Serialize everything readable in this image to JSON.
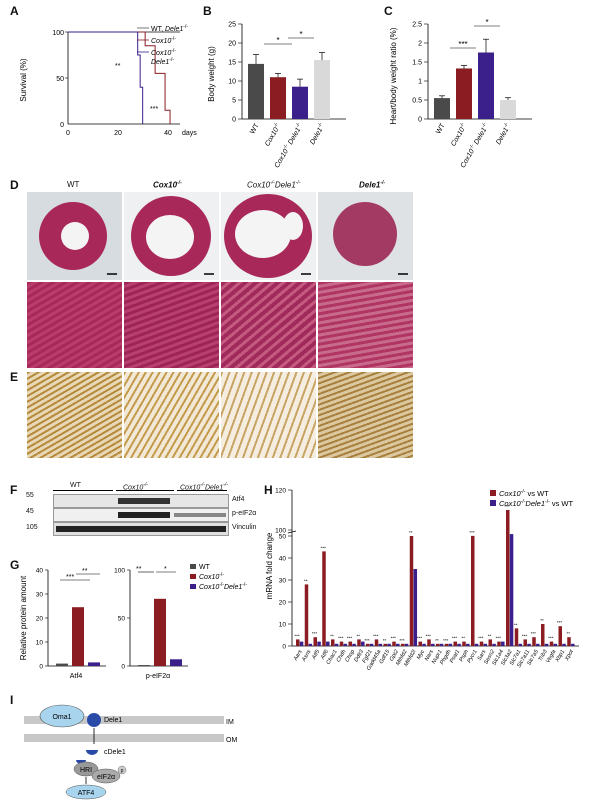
{
  "panels": {
    "A": "A",
    "B": "B",
    "C": "C",
    "D": "D",
    "E": "E",
    "F": "F",
    "G": "G",
    "H": "H",
    "I": "I"
  },
  "colors": {
    "wt": "#4a4a4a",
    "cox10": "#8a1c22",
    "dko": "#3b1f8a",
    "dele1": "#d9d9d9",
    "histo": "#a9285a",
    "dab": "#b58a3a"
  },
  "panelA": {
    "ylabel": "Survival (%)",
    "xunit": "days",
    "yticks": [
      "0",
      "50",
      "100"
    ],
    "xticks": [
      "0",
      "20",
      "40"
    ],
    "legend": [
      {
        "label": "WT, ",
        "label_i": "Dele1",
        "sup": "-/-"
      },
      {
        "label": "",
        "label_i": "Cox10",
        "sup": "-/-"
      },
      {
        "label": "",
        "label_i": "Cox10",
        "sup": "-/-"
      },
      {
        "label": "",
        "label_i": "Dele1",
        "sup": "-/-"
      }
    ],
    "sig1": "**",
    "sig2": "***"
  },
  "chart_data": [
    {
      "type": "line",
      "ylabel": "Survival (%)",
      "xlabel": "days",
      "xlim": [
        0,
        45
      ],
      "ylim": [
        0,
        100
      ],
      "series": [
        {
          "name": "WT, Dele1-/-",
          "x": [
            0,
            45
          ],
          "y": [
            100,
            100
          ]
        },
        {
          "name": "Cox10-/-",
          "x": [
            0,
            31,
            31,
            35,
            35,
            39,
            39,
            41,
            41
          ],
          "y": [
            100,
            100,
            85,
            85,
            55,
            55,
            15,
            15,
            0
          ]
        },
        {
          "name": "Cox10-/-Dele1-/-",
          "x": [
            0,
            28,
            28,
            29,
            29,
            30,
            30
          ],
          "y": [
            100,
            100,
            75,
            75,
            40,
            40,
            0
          ]
        }
      ]
    },
    {
      "type": "bar",
      "ylabel": "Body weight (g)",
      "categories": [
        "WT",
        "Cox10-/-",
        "Cox10-/- Dele1-/-",
        "Dele1-/-"
      ],
      "values": [
        14.5,
        11,
        8.5,
        15.5
      ],
      "errors": [
        2.5,
        1,
        2,
        2
      ],
      "ylim": [
        0,
        25
      ],
      "yticks": [
        0,
        5,
        10,
        15,
        20,
        25
      ],
      "sig": [
        "*",
        "*"
      ]
    },
    {
      "type": "bar",
      "ylabel": "Heart/body weight ratio (%)",
      "categories": [
        "WT",
        "Cox10-/-",
        "Cox10-/- Dele1-/-",
        "Dele1-/-"
      ],
      "values": [
        0.55,
        1.33,
        1.75,
        0.5
      ],
      "errors": [
        0.06,
        0.08,
        0.35,
        0.06
      ],
      "ylim": [
        0,
        2.5
      ],
      "yticks": [
        0,
        0.5,
        1,
        1.5,
        2,
        2.5
      ],
      "sig": [
        "***",
        "*"
      ]
    },
    {
      "type": "bar",
      "ylabel": "Relative protein amount",
      "categories": [
        "Atf4",
        "p-eIF2α"
      ],
      "series": [
        {
          "name": "WT",
          "values": [
            1,
            1
          ]
        },
        {
          "name": "Cox10-/-",
          "values": [
            24.5,
            70
          ]
        },
        {
          "name": "Cox10-/-Dele1-/-",
          "values": [
            1.5,
            7
          ]
        }
      ],
      "yticks_left": [
        0,
        10,
        20,
        30,
        40
      ],
      "yticks_right": [
        0,
        50,
        100
      ]
    },
    {
      "type": "bar",
      "ylabel": "mRNA fold change",
      "yticks": [
        0,
        10,
        20,
        30,
        40,
        50,
        100,
        120
      ],
      "categories": [
        "Aars",
        "Asns",
        "Atf5",
        "Atf6",
        "Chac1",
        "Chdh",
        "Chop",
        "Ddit3",
        "Fgf21",
        "Gadd45a",
        "Gdf15",
        "Gpt2",
        "Mthfd2",
        "Mthfd2l",
        "Myc",
        "Nars",
        "Nupr1",
        "Phgdh",
        "Psat1",
        "Psph",
        "Pycr1",
        "Sars",
        "Sesn2",
        "Slc1a4",
        "Slc3a2",
        "Slc7a1",
        "Slc7a11",
        "Slc7a5",
        "Trib3",
        "Vegfa",
        "Xbp1",
        "Xpot"
      ],
      "series": [
        {
          "name": "Cox10-/- vs WT",
          "values": [
            3,
            28,
            4,
            43,
            3,
            2,
            2,
            3,
            1,
            3,
            1,
            2,
            1,
            50,
            2,
            3,
            1,
            1,
            2,
            2,
            51,
            2,
            3,
            2,
            110,
            8,
            3,
            4,
            10,
            2,
            9,
            4
          ]
        },
        {
          "name": "Cox10-/-Dele1-/- vs WT",
          "values": [
            2,
            1,
            2,
            2,
            1,
            1,
            1,
            2,
            1,
            1,
            1,
            1,
            1,
            35,
            1,
            1,
            1,
            1,
            1,
            1,
            1,
            1,
            1,
            2,
            66,
            1,
            1,
            1,
            1,
            1,
            1,
            1
          ]
        }
      ]
    }
  ],
  "panelB": {
    "ylabel": "Body weight (g)",
    "yticks": [
      "0",
      "5",
      "10",
      "15",
      "20",
      "25"
    ],
    "sig": [
      "*",
      "*"
    ]
  },
  "panelC": {
    "ylabel": "Heart/body weight ratio (%)",
    "yticks": [
      "0",
      "0.5",
      "1",
      "1.5",
      "2",
      "2.5"
    ],
    "sig": [
      "***",
      "*"
    ]
  },
  "groups": {
    "wt": "WT",
    "cox10_i": "Cox10",
    "cox10_sup": "-/-",
    "dko_i1": "Cox10",
    "dko_sup1": "-/-",
    "dko_i2": "Dele1",
    "dko_sup2": "-/-",
    "dele1_i": "Dele1",
    "dele1_sup": "-/-"
  },
  "panelF": {
    "groups": [
      "WT",
      "Cox10",
      "Cox10",
      "Dele1"
    ],
    "sup": "-/-",
    "mw": [
      "55",
      "45",
      "105"
    ],
    "bands": [
      "Atf4",
      "p-eIF2α",
      "Vinculin"
    ]
  },
  "panelG": {
    "ylabel": "Relative protein amount",
    "yticks_left": [
      "0",
      "10",
      "20",
      "30",
      "40"
    ],
    "yticks_right": [
      "0",
      "50",
      "100"
    ],
    "x": [
      "Atf4",
      "p-eIF2α"
    ],
    "sig": [
      "***",
      "**",
      "**",
      "*"
    ],
    "legend": [
      {
        "label": "WT"
      },
      {
        "label": "Cox10",
        "sup": "-/-"
      },
      {
        "label": "Cox10",
        "sup": "-/-",
        "label2": "Dele1",
        "sup2": "-/-"
      }
    ]
  },
  "panelH": {
    "ylabel": "mRNA fold change",
    "yticks": [
      "0",
      "10",
      "20",
      "30",
      "40",
      "50",
      "100",
      "120"
    ],
    "legend": [
      {
        "i": "Cox10",
        "sup": "-/-",
        "rest": " vs WT"
      },
      {
        "i": "Cox10",
        "sup": "-/-",
        "i2": "Dele1",
        "sup2": "-/-",
        "rest": " vs WT"
      }
    ],
    "stars": "***",
    "stars2": "**"
  },
  "panelI": {
    "oma1": "Oma1",
    "dele1": "Dele1",
    "im": "IM",
    "om": "OM",
    "cdele1": "cDele1",
    "hri": "HRI",
    "eif2a": "eIF2α",
    "p": "p",
    "atf4": "ATF4"
  }
}
